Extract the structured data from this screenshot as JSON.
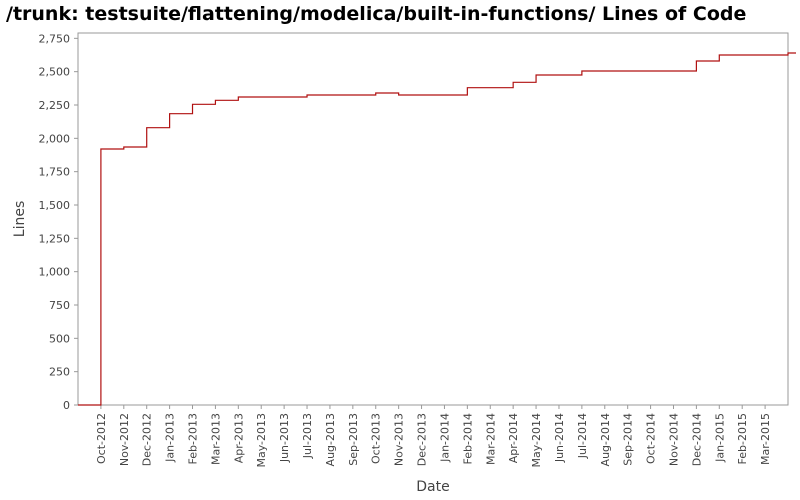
{
  "chart_data": {
    "type": "line",
    "title": "/trunk: testsuite/flattening/modelica/built-in-functions/ Lines of Code",
    "x_label": "Date",
    "y_label": "Lines",
    "x": [
      "2012-09",
      "2012-10",
      "2012-11",
      "2012-12",
      "2013-01",
      "2013-02",
      "2013-03",
      "2013-04",
      "2013-07",
      "2013-10",
      "2013-11",
      "2014-02",
      "2014-04",
      "2014-05",
      "2014-07",
      "2014-12",
      "2015-01",
      "2015-04"
    ],
    "series": [
      {
        "name": "Lines",
        "color": "#b01010",
        "values": [
          0,
          1920,
          1935,
          2080,
          2185,
          2255,
          2285,
          2310,
          2325,
          2340,
          2325,
          2380,
          2420,
          2475,
          2505,
          2580,
          2625,
          2640
        ]
      }
    ],
    "step": true,
    "xlim": [
      "2012-09",
      "2015-04"
    ],
    "xticks": [
      "Oct-2012",
      "Nov-2012",
      "Dec-2012",
      "Jan-2013",
      "Feb-2013",
      "Mar-2013",
      "Apr-2013",
      "May-2013",
      "Jun-2013",
      "Jul-2013",
      "Aug-2013",
      "Sep-2013",
      "Oct-2013",
      "Nov-2013",
      "Dec-2013",
      "Jan-2014",
      "Feb-2014",
      "Mar-2014",
      "Apr-2014",
      "May-2014",
      "Jun-2014",
      "Jul-2014",
      "Aug-2014",
      "Sep-2014",
      "Oct-2014",
      "Nov-2014",
      "Dec-2014",
      "Jan-2015",
      "Feb-2015",
      "Mar-2015"
    ],
    "ylim": [
      0,
      2790
    ],
    "yticks": [
      0,
      250,
      500,
      750,
      {
        "value": 1000,
        "label": "1,000"
      },
      {
        "value": 1250,
        "label": "1,250"
      },
      {
        "value": 1500,
        "label": "1,500"
      },
      {
        "value": 1750,
        "label": "1,750"
      },
      {
        "value": 2000,
        "label": "2,000"
      },
      {
        "value": 2250,
        "label": "2,250"
      },
      {
        "value": 2500,
        "label": "2,500"
      },
      {
        "value": 2750,
        "label": "2,750"
      }
    ],
    "grid": false
  }
}
